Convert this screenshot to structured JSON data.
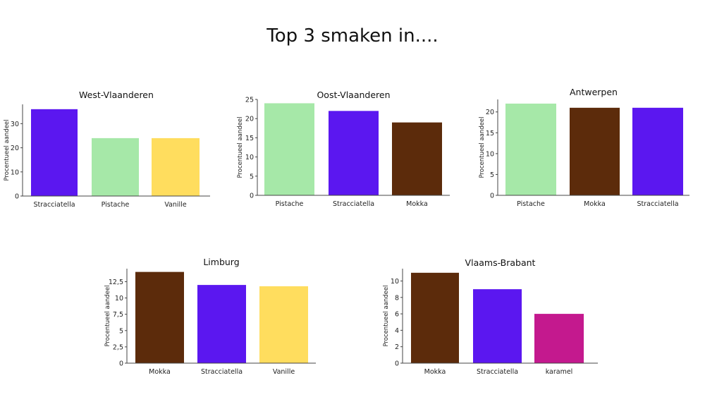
{
  "page_title": "Top 3 smaken in....",
  "colors": {
    "Stracciatella": "#5b17f0",
    "Pistache": "#a6e8a8",
    "Vanille": "#ffdd5e",
    "Mokka": "#5c2b0b",
    "karamel": "#c4198e"
  },
  "chart_data": [
    {
      "type": "bar",
      "title": "West-Vlaanderen",
      "ylabel": "Procentueel aandeel",
      "categories": [
        "Stracciatella",
        "Pistache",
        "Vanille"
      ],
      "values": [
        36,
        24,
        24
      ],
      "ylim": [
        0,
        38
      ],
      "yticks": [
        0,
        10,
        20,
        30
      ],
      "ytick_labels": [
        "0",
        "10",
        "20",
        "30"
      ],
      "grid": false
    },
    {
      "type": "bar",
      "title": "Oost-Vlaanderen",
      "ylabel": "Procentueel aandeel",
      "categories": [
        "Pistache",
        "Stracciatella",
        "Mokka"
      ],
      "values": [
        24,
        22,
        19
      ],
      "ylim": [
        0,
        25
      ],
      "yticks": [
        0,
        5,
        10,
        15,
        20,
        25
      ],
      "ytick_labels": [
        "0",
        "5",
        "10",
        "15",
        "20",
        "25"
      ],
      "grid": false
    },
    {
      "type": "bar",
      "title": "Antwerpen",
      "ylabel": "Procentueel aandeel",
      "categories": [
        "Pistache",
        "Mokka",
        "Stracciatella"
      ],
      "values": [
        22,
        21,
        21
      ],
      "ylim": [
        0,
        23
      ],
      "yticks": [
        0,
        5,
        10,
        15,
        20
      ],
      "ytick_labels": [
        "0",
        "5",
        "10",
        "15",
        "20"
      ],
      "grid": false
    },
    {
      "type": "bar",
      "title": "Limburg",
      "ylabel": "Procentueel aandeel",
      "categories": [
        "Mokka",
        "Stracciatella",
        "Vanille"
      ],
      "values": [
        14,
        12,
        11.8
      ],
      "ylim": [
        0,
        14.5
      ],
      "yticks": [
        0,
        2.5,
        5,
        7.5,
        10,
        12.5
      ],
      "ytick_labels": [
        "0",
        "2,5",
        "5",
        "7,5",
        "10",
        "12,5"
      ],
      "grid": false
    },
    {
      "type": "bar",
      "title": "Vlaams-Brabant",
      "ylabel": "Procentueel aandeel",
      "categories": [
        "Mokka",
        "Stracciatella",
        "karamel"
      ],
      "values": [
        11,
        9,
        6
      ],
      "ylim": [
        0,
        11.5
      ],
      "yticks": [
        0,
        2,
        4,
        6,
        8,
        10
      ],
      "ytick_labels": [
        "0",
        "2",
        "4",
        "6",
        "8",
        "10"
      ],
      "grid": false
    }
  ]
}
